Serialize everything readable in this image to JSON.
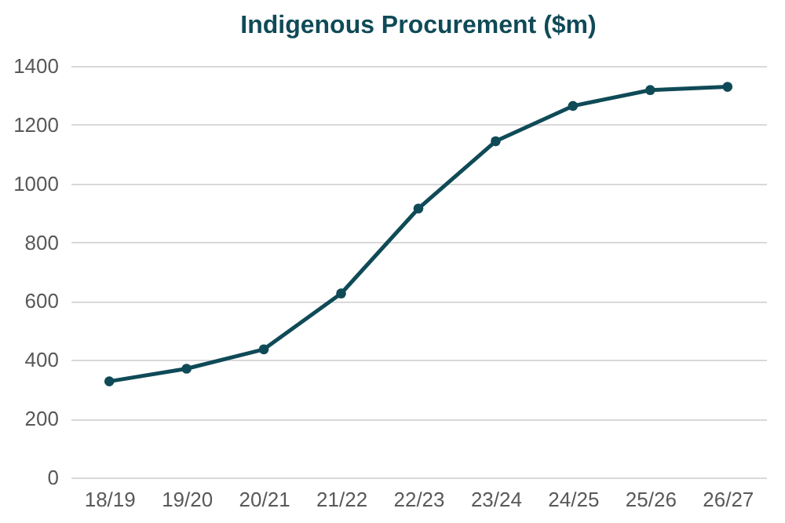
{
  "chart_data": {
    "type": "line",
    "title": "Indigenous Procurement ($m)",
    "categories": [
      "18/19",
      "19/20",
      "20/21",
      "21/22",
      "22/23",
      "23/24",
      "24/25",
      "25/26",
      "26/27"
    ],
    "series": [
      {
        "color": "#0f4a57",
        "values": [
          327,
          370,
          436,
          626,
          915,
          1144,
          1264,
          1318,
          1329
        ]
      }
    ],
    "ylim": [
      0,
      1400
    ],
    "yticks": [
      0,
      200,
      400,
      600,
      800,
      1000,
      1200,
      1400
    ],
    "grid": "y",
    "marker": "circle",
    "line_style": "solid"
  }
}
